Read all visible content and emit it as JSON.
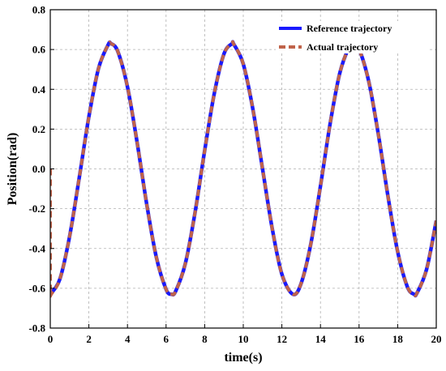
{
  "chart_data": {
    "type": "line",
    "title": "",
    "xlabel": "time(s)",
    "ylabel": "Position(rad)",
    "xlim": [
      0,
      20
    ],
    "ylim": [
      -0.8,
      0.8
    ],
    "xticks": [
      0,
      2,
      4,
      6,
      8,
      10,
      12,
      14,
      16,
      18,
      20
    ],
    "yticks": [
      -0.8,
      -0.6,
      -0.4,
      -0.2,
      0.0,
      0.2,
      0.4,
      0.6,
      0.8
    ],
    "xtick_labels": [
      "0",
      "2",
      "4",
      "6",
      "8",
      "10",
      "12",
      "14",
      "16",
      "18",
      "20"
    ],
    "ytick_labels": [
      "-0.8",
      "-0.6",
      "-0.4",
      "-0.2",
      "0.0",
      "0.2",
      "0.4",
      "0.6",
      "0.8"
    ],
    "grid": true,
    "legend_position": "top-right",
    "series": [
      {
        "name": "Reference trajectory",
        "color": "#1a1aff",
        "style": "solid",
        "x": [
          0,
          0.5,
          1,
          1.5,
          2,
          2.5,
          3,
          3.14,
          3.5,
          4,
          4.5,
          5,
          5.5,
          6,
          6.28,
          6.5,
          7,
          7.5,
          8,
          8.5,
          9,
          9.42,
          9.5,
          10,
          10.5,
          11,
          11.5,
          12,
          12.57,
          13,
          13.5,
          14,
          14.5,
          15,
          15.5,
          15.71,
          16,
          16.5,
          17,
          17.5,
          18,
          18.5,
          18.85,
          19,
          19.5,
          20
        ],
        "y": [
          -0.63,
          -0.553,
          -0.34,
          -0.045,
          0.262,
          0.505,
          0.624,
          0.63,
          0.59,
          0.412,
          0.133,
          -0.179,
          -0.446,
          -0.605,
          -0.63,
          -0.614,
          -0.475,
          -0.22,
          0.092,
          0.38,
          0.578,
          0.63,
          0.628,
          0.527,
          0.299,
          -0.001,
          -0.3,
          -0.529,
          -0.63,
          -0.575,
          -0.377,
          -0.086,
          0.227,
          0.481,
          0.617,
          0.63,
          0.603,
          0.44,
          0.173,
          -0.139,
          -0.416,
          -0.592,
          -0.63,
          -0.624,
          -0.504,
          -0.26
        ]
      },
      {
        "name": "Actual trajectory",
        "color": "#c0634a",
        "style": "dashed",
        "x": [
          0,
          0,
          0.05,
          0.5,
          1,
          1.5,
          2,
          2.5,
          3,
          3.14,
          3.5,
          4,
          4.5,
          5,
          5.5,
          6,
          6.28,
          6.5,
          7,
          7.5,
          8,
          8.5,
          9,
          9.42,
          9.5,
          10,
          10.5,
          11,
          11.5,
          12,
          12.57,
          13,
          13.5,
          14,
          14.5,
          15,
          15.5,
          15.71,
          16,
          16.5,
          17,
          17.5,
          18,
          18.5,
          18.85,
          19,
          19.5,
          20
        ],
        "y": [
          0.0,
          -0.64,
          -0.63,
          -0.553,
          -0.34,
          -0.045,
          0.262,
          0.505,
          0.624,
          0.63,
          0.59,
          0.412,
          0.133,
          -0.179,
          -0.446,
          -0.605,
          -0.63,
          -0.614,
          -0.475,
          -0.22,
          0.092,
          0.38,
          0.578,
          0.63,
          0.628,
          0.527,
          0.299,
          -0.001,
          -0.3,
          -0.529,
          -0.63,
          -0.575,
          -0.377,
          -0.086,
          0.227,
          0.481,
          0.617,
          0.63,
          0.603,
          0.44,
          0.173,
          -0.139,
          -0.416,
          -0.592,
          -0.63,
          -0.624,
          -0.504,
          -0.26
        ]
      }
    ]
  }
}
